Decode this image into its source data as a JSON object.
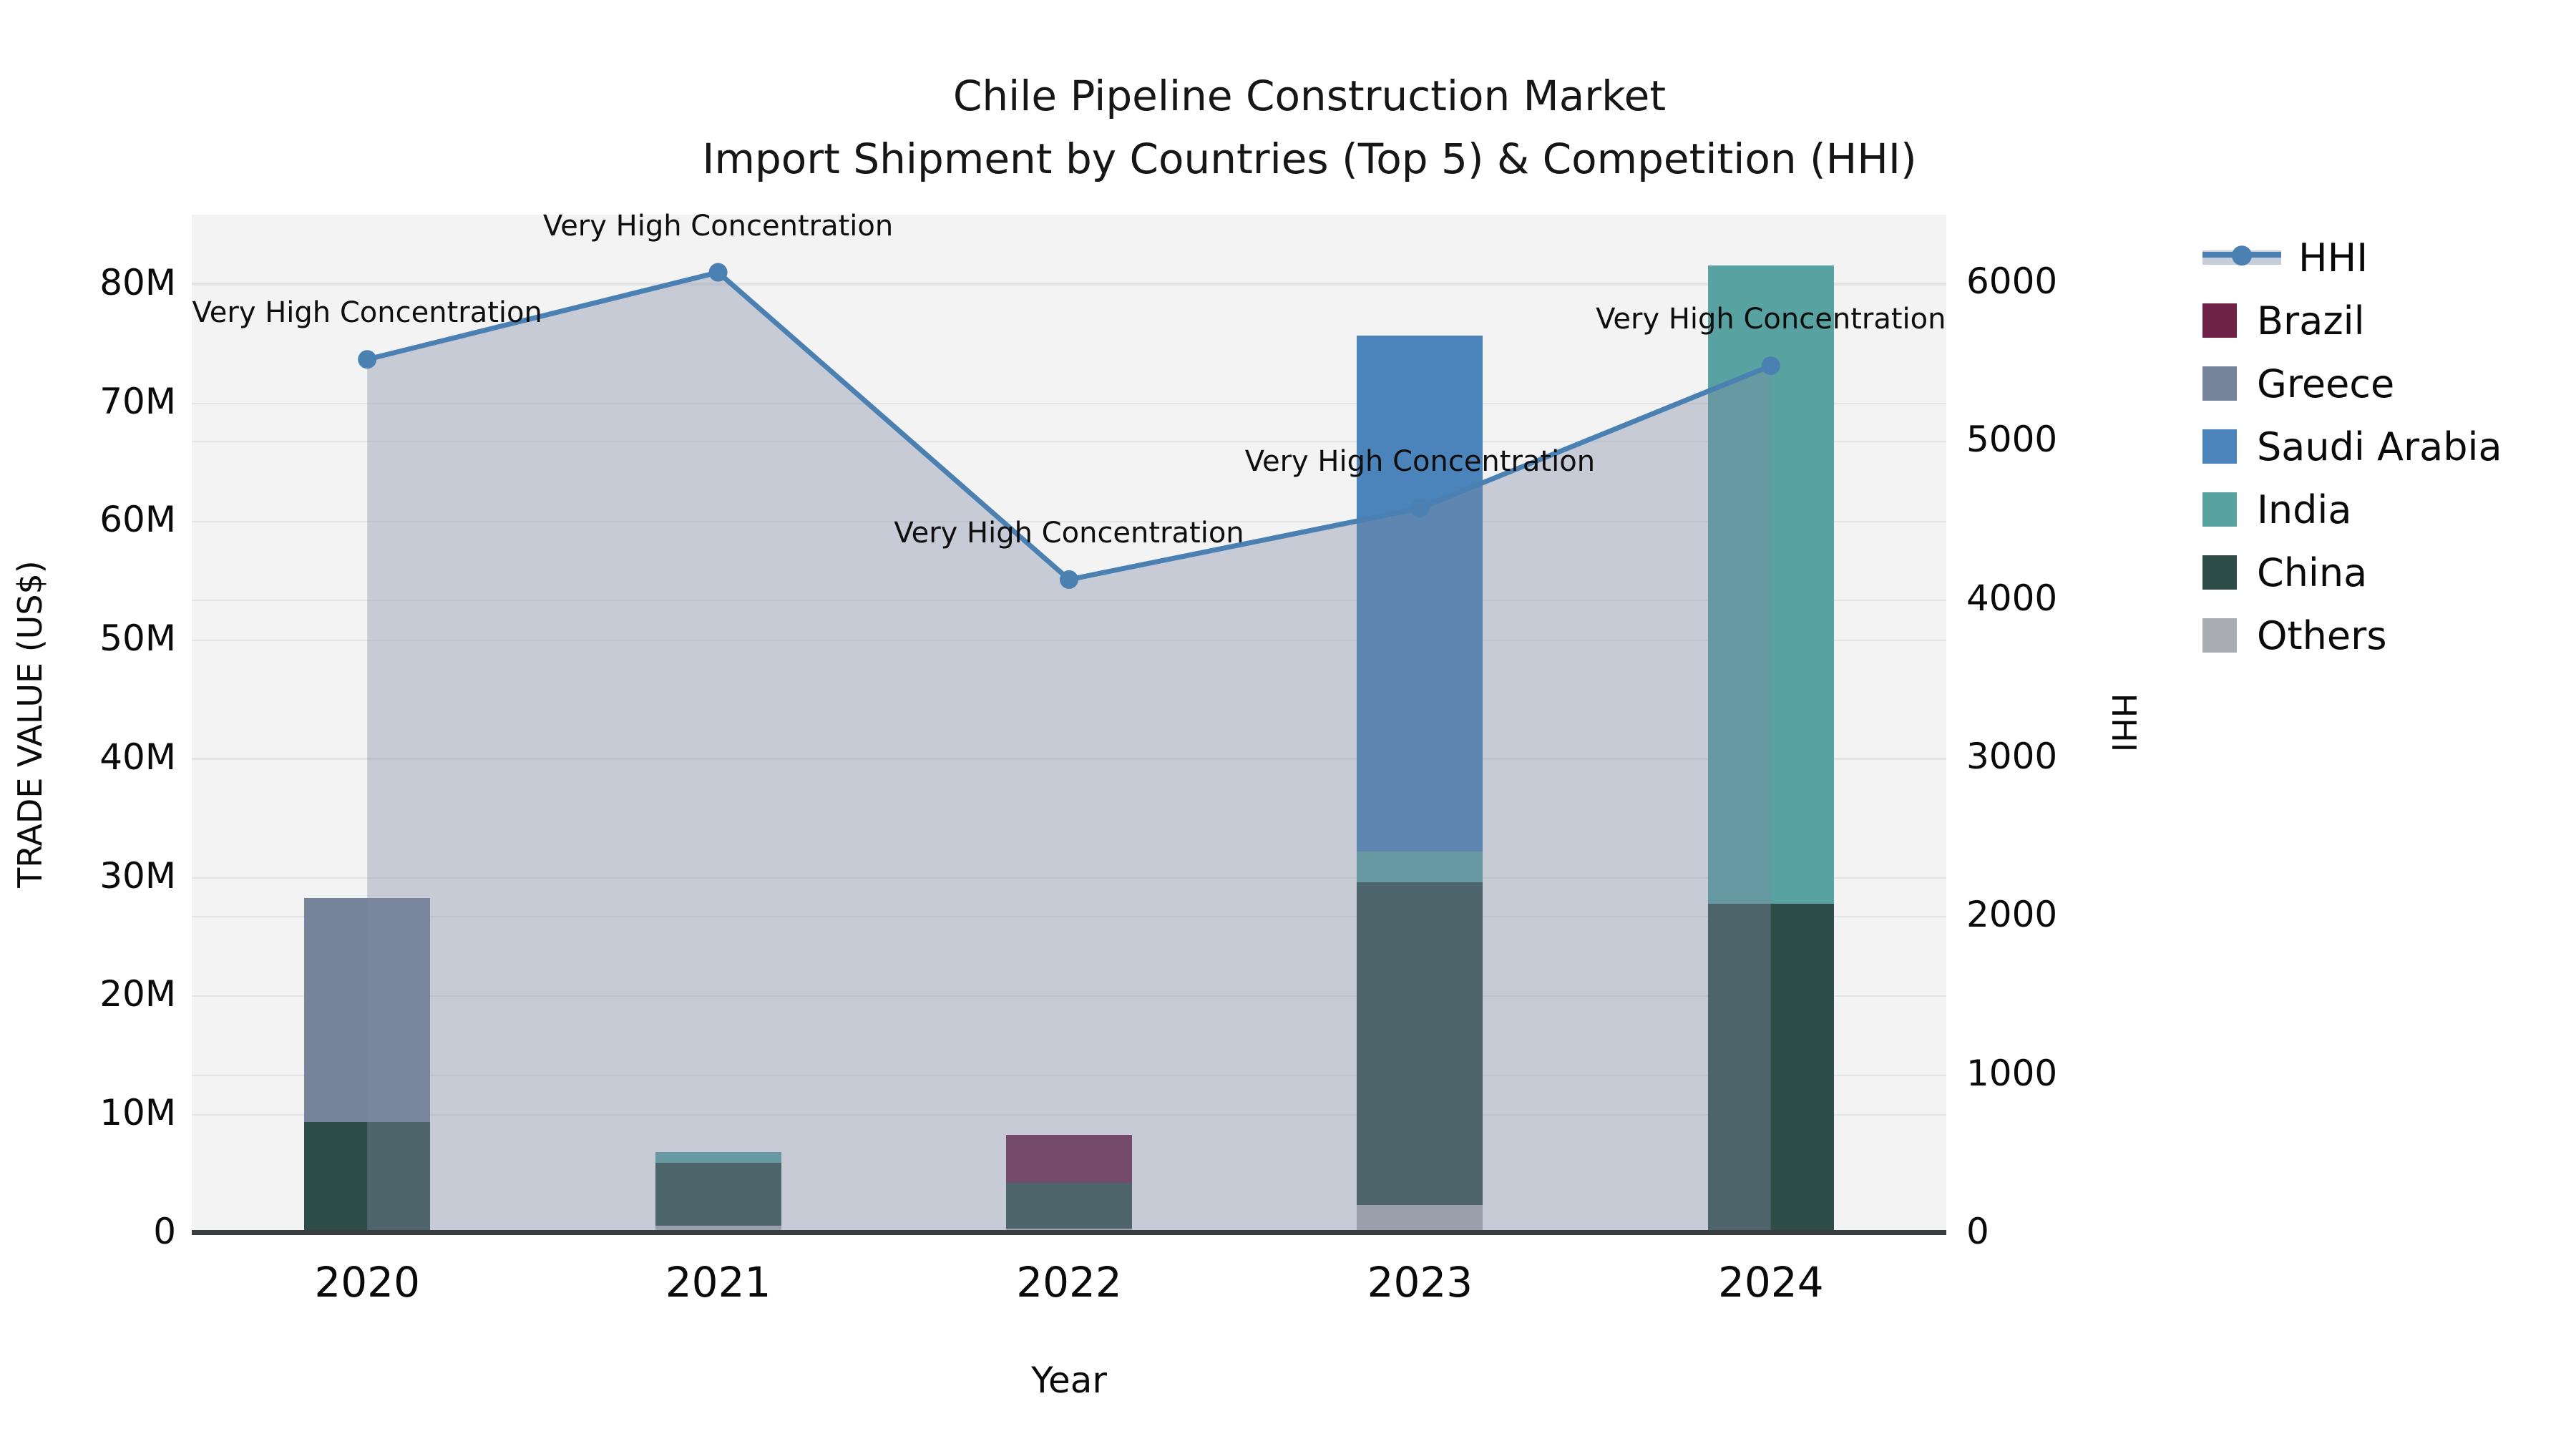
{
  "chart_data": {
    "type": "combo-stacked-bar-line",
    "title": "Chile Pipeline Construction Market",
    "subtitle": "Import Shipment by Countries (Top 5) & Competition (HHI)",
    "xlabel": "Year",
    "ylabel_left": "TRADE VALUE (US$)",
    "ylabel_right": "HHI",
    "categories": [
      "2020",
      "2021",
      "2022",
      "2023",
      "2024"
    ],
    "bar_value_unit": "million US$",
    "stack_order": [
      "Others",
      "China",
      "Brazil",
      "Greece",
      "India",
      "Saudi Arabia"
    ],
    "series": [
      {
        "name": "Brazil",
        "color": "#6e2247",
        "values": [
          0,
          0,
          4.0,
          0,
          0
        ]
      },
      {
        "name": "Greece",
        "color": "#75849a",
        "values": [
          18.9,
          0,
          0,
          0,
          0
        ]
      },
      {
        "name": "Saudi Arabia",
        "color": "#4b84ba",
        "values": [
          0,
          0,
          0,
          43.5,
          0
        ]
      },
      {
        "name": "India",
        "color": "#58a2a2",
        "values": [
          0,
          0.9,
          0,
          2.6,
          53.8
        ]
      },
      {
        "name": "China",
        "color": "#2e4c48",
        "values": [
          9.2,
          5.3,
          3.9,
          27.2,
          27.5
        ]
      },
      {
        "name": "Others",
        "color": "#a9adb2",
        "values": [
          0.2,
          0.65,
          0.4,
          2.4,
          0.3
        ]
      }
    ],
    "line_series": {
      "name": "HHI",
      "color": "#4a80b2",
      "area_color": "rgba(128,139,162,0.38)",
      "values": [
        5520,
        6070,
        4130,
        4580,
        5480
      ]
    },
    "annotations": [
      "Very High Concentration",
      "Very High Concentration",
      "Very High Concentration",
      "Very High Concentration",
      "Very High Concentration"
    ],
    "axes": {
      "left": {
        "ticks": [
          "0",
          "10M",
          "20M",
          "30M",
          "40M",
          "50M",
          "60M",
          "70M",
          "80M"
        ],
        "tick_values": [
          0,
          10,
          20,
          30,
          40,
          50,
          60,
          70,
          80
        ],
        "min": 0,
        "max": 85.9
      },
      "right": {
        "ticks": [
          "0",
          "1000",
          "2000",
          "3000",
          "4000",
          "5000",
          "6000"
        ],
        "tick_values": [
          0,
          1000,
          2000,
          3000,
          4000,
          5000,
          6000
        ],
        "min": 0,
        "max": 6434
      }
    },
    "legend_entries": [
      "HHI",
      "Brazil",
      "Greece",
      "Saudi Arabia",
      "India",
      "China",
      "Others"
    ],
    "legend_position": "right",
    "grid": true
  }
}
